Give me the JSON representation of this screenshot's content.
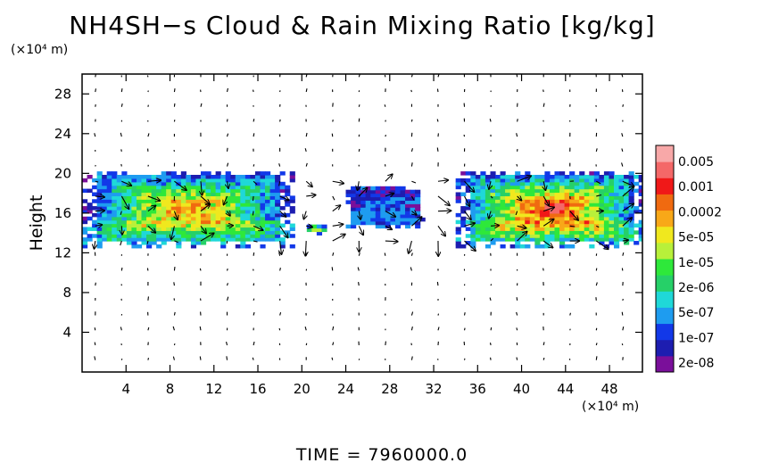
{
  "chart_data": {
    "type": "heatmap",
    "title": "NH4SH−s Cloud & Rain Mixing Ratio [kg/kg]",
    "xlabel": "",
    "ylabel": "Height",
    "x_unit": "(×10⁴ m)",
    "y_unit": "(×10⁴ m)",
    "xlim": [
      0,
      51
    ],
    "ylim": [
      0,
      30
    ],
    "x_ticks": [
      4,
      8,
      12,
      16,
      20,
      24,
      28,
      32,
      36,
      40,
      44,
      48
    ],
    "y_ticks": [
      4,
      8,
      12,
      16,
      20,
      24,
      28
    ],
    "grid": false,
    "overlay": "wind vector arrows",
    "colorbar": {
      "labels": [
        "0.005",
        "0.001",
        "0.0002",
        "5e-05",
        "1e-05",
        "2e-06",
        "5e-07",
        "1e-07",
        "2e-08"
      ],
      "colors": [
        "#7a0f9a",
        "#1d1db0",
        "#1238e8",
        "#1e9cf0",
        "#1fd8d8",
        "#26d068",
        "#2ee83a",
        "#b8f03a",
        "#f0e81e",
        "#f8a818",
        "#f06a10",
        "#f01818",
        "#f46868",
        "#f8a8a8"
      ]
    },
    "cloud_regions": [
      {
        "name": "left band",
        "x_range": [
          0,
          19
        ],
        "height_range": [
          12.5,
          20
        ],
        "peak": "0.0002"
      },
      {
        "name": "center blob",
        "x_range": [
          20,
          22
        ],
        "height_range": [
          13.8,
          14.8
        ],
        "peak": "1e-05"
      },
      {
        "name": "mid band",
        "x_range": [
          24,
          31
        ],
        "height_range": [
          14.5,
          18.5
        ],
        "peak": "1e-07"
      },
      {
        "name": "right band",
        "x_range": [
          34,
          51
        ],
        "height_range": [
          12.5,
          20
        ],
        "peak": "0.001"
      }
    ]
  },
  "footer": {
    "time_label": "TIME = 7960000.0"
  }
}
